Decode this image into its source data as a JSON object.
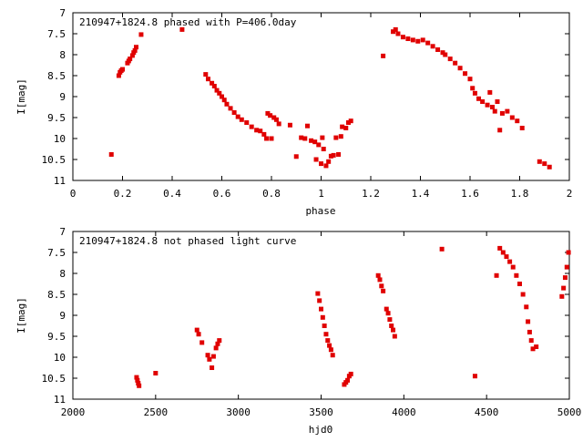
{
  "chart_data": [
    {
      "type": "scatter",
      "title": "210947+1824.8 phased with P=406.0day",
      "xlabel": "phase",
      "ylabel": "I[mag]",
      "xlim": [
        0,
        2
      ],
      "ylim": [
        11,
        7
      ],
      "y_inverted": true,
      "grid": false,
      "color": "#e00000",
      "xticks": [
        "0",
        "0.2",
        "0.4",
        "0.6",
        "0.8",
        "1",
        "1.2",
        "1.4",
        "1.6",
        "1.8",
        "2"
      ],
      "xtick_values": [
        0,
        0.2,
        0.4,
        0.6,
        0.8,
        1.0,
        1.2,
        1.4,
        1.6,
        1.8,
        2.0
      ],
      "yticks": [
        "7",
        "7.5",
        "8",
        "8.5",
        "9",
        "9.5",
        "10",
        "10.5",
        "11"
      ],
      "ytick_values": [
        7,
        7.5,
        8,
        8.5,
        9,
        9.5,
        10,
        10.5,
        11
      ],
      "points": [
        [
          0.155,
          10.38
        ],
        [
          0.185,
          8.5
        ],
        [
          0.19,
          8.42
        ],
        [
          0.195,
          8.38
        ],
        [
          0.2,
          8.35
        ],
        [
          0.22,
          8.2
        ],
        [
          0.225,
          8.15
        ],
        [
          0.23,
          8.1
        ],
        [
          0.24,
          8.02
        ],
        [
          0.245,
          7.95
        ],
        [
          0.25,
          7.9
        ],
        [
          0.255,
          7.82
        ],
        [
          0.275,
          7.52
        ],
        [
          0.44,
          7.4
        ],
        [
          0.535,
          8.47
        ],
        [
          0.545,
          8.58
        ],
        [
          0.56,
          8.68
        ],
        [
          0.57,
          8.75
        ],
        [
          0.58,
          8.85
        ],
        [
          0.59,
          8.92
        ],
        [
          0.6,
          9.0
        ],
        [
          0.61,
          9.08
        ],
        [
          0.62,
          9.18
        ],
        [
          0.635,
          9.28
        ],
        [
          0.65,
          9.38
        ],
        [
          0.665,
          9.48
        ],
        [
          0.68,
          9.55
        ],
        [
          0.7,
          9.62
        ],
        [
          0.72,
          9.72
        ],
        [
          0.74,
          9.8
        ],
        [
          0.755,
          9.82
        ],
        [
          0.77,
          9.9
        ],
        [
          0.78,
          10.0
        ],
        [
          0.785,
          9.4
        ],
        [
          0.795,
          9.45
        ],
        [
          0.8,
          10.0
        ],
        [
          0.81,
          9.5
        ],
        [
          0.82,
          9.55
        ],
        [
          0.83,
          9.65
        ],
        [
          0.875,
          9.68
        ],
        [
          0.9,
          10.43
        ],
        [
          0.92,
          9.98
        ],
        [
          0.935,
          10.0
        ],
        [
          0.945,
          9.7
        ],
        [
          0.96,
          10.05
        ],
        [
          0.975,
          10.08
        ],
        [
          0.98,
          10.5
        ],
        [
          0.99,
          10.15
        ],
        [
          1.0,
          10.6
        ],
        [
          1.005,
          9.98
        ],
        [
          1.01,
          10.25
        ],
        [
          1.02,
          10.65
        ],
        [
          1.03,
          10.55
        ],
        [
          1.04,
          10.42
        ],
        [
          1.05,
          10.4
        ],
        [
          1.06,
          9.98
        ],
        [
          1.07,
          10.38
        ],
        [
          1.08,
          9.95
        ],
        [
          1.085,
          9.72
        ],
        [
          1.1,
          9.75
        ],
        [
          1.11,
          9.62
        ],
        [
          1.12,
          9.58
        ],
        [
          1.25,
          8.03
        ],
        [
          1.29,
          7.45
        ],
        [
          1.3,
          7.4
        ],
        [
          1.31,
          7.5
        ],
        [
          1.33,
          7.58
        ],
        [
          1.35,
          7.62
        ],
        [
          1.37,
          7.65
        ],
        [
          1.39,
          7.68
        ],
        [
          1.41,
          7.65
        ],
        [
          1.43,
          7.72
        ],
        [
          1.45,
          7.8
        ],
        [
          1.47,
          7.88
        ],
        [
          1.49,
          7.95
        ],
        [
          1.5,
          8.0
        ],
        [
          1.52,
          8.1
        ],
        [
          1.54,
          8.2
        ],
        [
          1.56,
          8.32
        ],
        [
          1.58,
          8.45
        ],
        [
          1.6,
          8.58
        ],
        [
          1.61,
          8.8
        ],
        [
          1.62,
          8.92
        ],
        [
          1.635,
          9.05
        ],
        [
          1.65,
          9.12
        ],
        [
          1.67,
          9.2
        ],
        [
          1.68,
          8.9
        ],
        [
          1.69,
          9.25
        ],
        [
          1.7,
          9.35
        ],
        [
          1.71,
          9.12
        ],
        [
          1.72,
          9.8
        ],
        [
          1.73,
          9.4
        ],
        [
          1.75,
          9.35
        ],
        [
          1.77,
          9.5
        ],
        [
          1.79,
          9.58
        ],
        [
          1.81,
          9.75
        ],
        [
          1.88,
          10.55
        ],
        [
          1.9,
          10.6
        ],
        [
          1.92,
          10.68
        ]
      ]
    },
    {
      "type": "scatter",
      "title": "210947+1824.8 not phased light curve",
      "xlabel": "hjd0",
      "ylabel": "I[mag]",
      "xlim": [
        2000,
        5000
      ],
      "ylim": [
        11,
        7
      ],
      "y_inverted": true,
      "grid": false,
      "color": "#e00000",
      "xticks": [
        "2000",
        "2500",
        "3000",
        "3500",
        "4000",
        "4500",
        "5000"
      ],
      "xtick_values": [
        2000,
        2500,
        3000,
        3500,
        4000,
        4500,
        5000
      ],
      "yticks": [
        "7",
        "7.5",
        "8",
        "8.5",
        "9",
        "9.5",
        "10",
        "10.5",
        "11"
      ],
      "ytick_values": [
        7,
        7.5,
        8,
        8.5,
        9,
        9.5,
        10,
        10.5,
        11
      ],
      "points": [
        [
          2385,
          10.48
        ],
        [
          2390,
          10.55
        ],
        [
          2395,
          10.62
        ],
        [
          2400,
          10.68
        ],
        [
          2500,
          10.38
        ],
        [
          2750,
          9.35
        ],
        [
          2760,
          9.45
        ],
        [
          2780,
          9.65
        ],
        [
          2815,
          9.95
        ],
        [
          2825,
          10.05
        ],
        [
          2840,
          10.25
        ],
        [
          2850,
          9.98
        ],
        [
          2865,
          9.78
        ],
        [
          2875,
          9.68
        ],
        [
          2885,
          9.6
        ],
        [
          3480,
          8.48
        ],
        [
          3490,
          8.65
        ],
        [
          3500,
          8.85
        ],
        [
          3510,
          9.05
        ],
        [
          3520,
          9.25
        ],
        [
          3530,
          9.45
        ],
        [
          3540,
          9.6
        ],
        [
          3550,
          9.72
        ],
        [
          3560,
          9.82
        ],
        [
          3570,
          9.95
        ],
        [
          3640,
          10.65
        ],
        [
          3650,
          10.6
        ],
        [
          3660,
          10.55
        ],
        [
          3670,
          10.45
        ],
        [
          3680,
          10.4
        ],
        [
          3845,
          8.05
        ],
        [
          3855,
          8.15
        ],
        [
          3865,
          8.3
        ],
        [
          3875,
          8.42
        ],
        [
          3895,
          8.85
        ],
        [
          3905,
          8.95
        ],
        [
          3915,
          9.1
        ],
        [
          3925,
          9.25
        ],
        [
          3935,
          9.35
        ],
        [
          3945,
          9.5
        ],
        [
          4230,
          7.42
        ],
        [
          4430,
          10.45
        ],
        [
          4560,
          8.05
        ],
        [
          4580,
          7.4
        ],
        [
          4600,
          7.5
        ],
        [
          4620,
          7.6
        ],
        [
          4640,
          7.72
        ],
        [
          4660,
          7.85
        ],
        [
          4680,
          8.05
        ],
        [
          4700,
          8.25
        ],
        [
          4720,
          8.5
        ],
        [
          4740,
          8.8
        ],
        [
          4750,
          9.15
        ],
        [
          4760,
          9.4
        ],
        [
          4770,
          9.6
        ],
        [
          4780,
          9.8
        ],
        [
          4800,
          9.75
        ],
        [
          4955,
          8.55
        ],
        [
          4965,
          8.35
        ],
        [
          4975,
          8.1
        ],
        [
          4985,
          7.85
        ],
        [
          4995,
          7.5
        ]
      ]
    }
  ]
}
